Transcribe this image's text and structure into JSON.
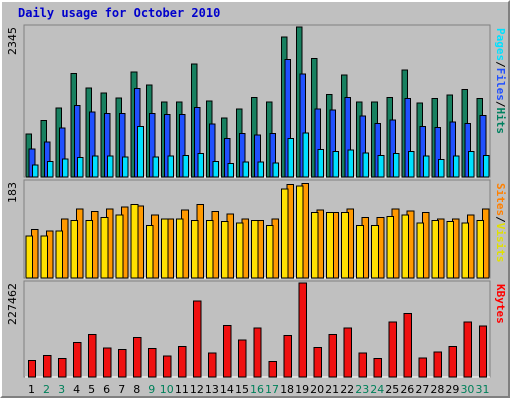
{
  "chart_data": {
    "title": "Daily usage for October 2010",
    "categories": [
      "1",
      "2",
      "3",
      "4",
      "5",
      "6",
      "7",
      "8",
      "9",
      "10",
      "11",
      "12",
      "13",
      "14",
      "15",
      "16",
      "17",
      "18",
      "19",
      "20",
      "21",
      "22",
      "23",
      "24",
      "25",
      "26",
      "27",
      "28",
      "29",
      "30",
      "31"
    ],
    "weekend_days": [
      "2",
      "3",
      "9",
      "10",
      "16",
      "17",
      "23",
      "24",
      "30",
      "31"
    ],
    "panels": [
      {
        "type": "bar",
        "max_label": "2345",
        "ymax": 2345,
        "right_label_parts": [
          "Pages",
          "/",
          "Files",
          "/",
          "Hits"
        ],
        "right_label_colors": [
          "#00e0ff",
          "#000000",
          "#2050ff",
          "#000000",
          "#008060"
        ],
        "series": [
          {
            "name": "Hits",
            "color": "#188060",
            "values": [
              675,
              880,
              1080,
              1615,
              1390,
              1310,
              1235,
              1640,
              1435,
              1175,
              1175,
              1765,
              1190,
              920,
              1060,
              1245,
              1175,
              2190,
              2345,
              1855,
              1290,
              1595,
              1175,
              1175,
              1245,
              1675,
              1160,
              1230,
              1285,
              1365,
              1225
            ]
          },
          {
            "name": "Files",
            "color": "#2050ff",
            "values": [
              435,
              545,
              765,
              1120,
              1015,
              995,
              990,
              1385,
              990,
              975,
              975,
              1090,
              830,
              600,
              680,
              655,
              680,
              1840,
              1610,
              1065,
              1045,
              1245,
              950,
              835,
              890,
              1230,
              790,
              770,
              860,
              835,
              960
            ]
          },
          {
            "name": "Pages",
            "color": "#00e0ff",
            "values": [
              190,
              245,
              280,
              305,
              330,
              330,
              315,
              790,
              315,
              325,
              335,
              365,
              245,
              210,
              235,
              235,
              215,
              600,
              690,
              430,
              395,
              425,
              375,
              335,
              370,
              400,
              325,
              275,
              330,
              400,
              340
            ]
          }
        ]
      },
      {
        "type": "bar",
        "max_label": "183",
        "ymax": 183,
        "right_label_parts": [
          "Sites",
          "/",
          "Visits"
        ],
        "right_label_colors": [
          "#ff8000",
          "#000000",
          "#e0e000"
        ],
        "series": [
          {
            "name": "Visits",
            "color": "#ff9900",
            "values": [
              92,
              90,
              112,
              132,
              127,
              132,
              135,
              137,
              120,
              112,
              130,
              140,
              127,
              122,
              112,
              110,
              112,
              178,
              180,
              130,
              125,
              132,
              115,
              115,
              132,
              128,
              125,
              112,
              112,
              120,
              132
            ]
          },
          {
            "name": "Sites",
            "color": "#ffe000",
            "values": [
              80,
              80,
              90,
              110,
              110,
              115,
              120,
              140,
              100,
              112,
              112,
              110,
              110,
              108,
              105,
              110,
              100,
              170,
              175,
              125,
              125,
              125,
              100,
              100,
              117,
              120,
              105,
              110,
              108,
              105,
              110
            ]
          }
        ]
      },
      {
        "type": "bar",
        "max_label": "227462",
        "ymax": 227462,
        "right_label_parts": [
          "KBytes"
        ],
        "right_label_colors": [
          "#ff0000"
        ],
        "series": [
          {
            "name": "KBytes",
            "color": "#f01010",
            "values": [
              40000,
              52000,
              45000,
              84000,
              103000,
              70000,
              66000,
              96000,
              69000,
              51000,
              74000,
              184000,
              58000,
              125000,
              89000,
              118000,
              38000,
              101000,
              227462,
              71000,
              103000,
              118000,
              58000,
              45000,
              133000,
              154000,
              46000,
              60000,
              74000,
              133000,
              123000
            ]
          }
        ]
      }
    ]
  }
}
